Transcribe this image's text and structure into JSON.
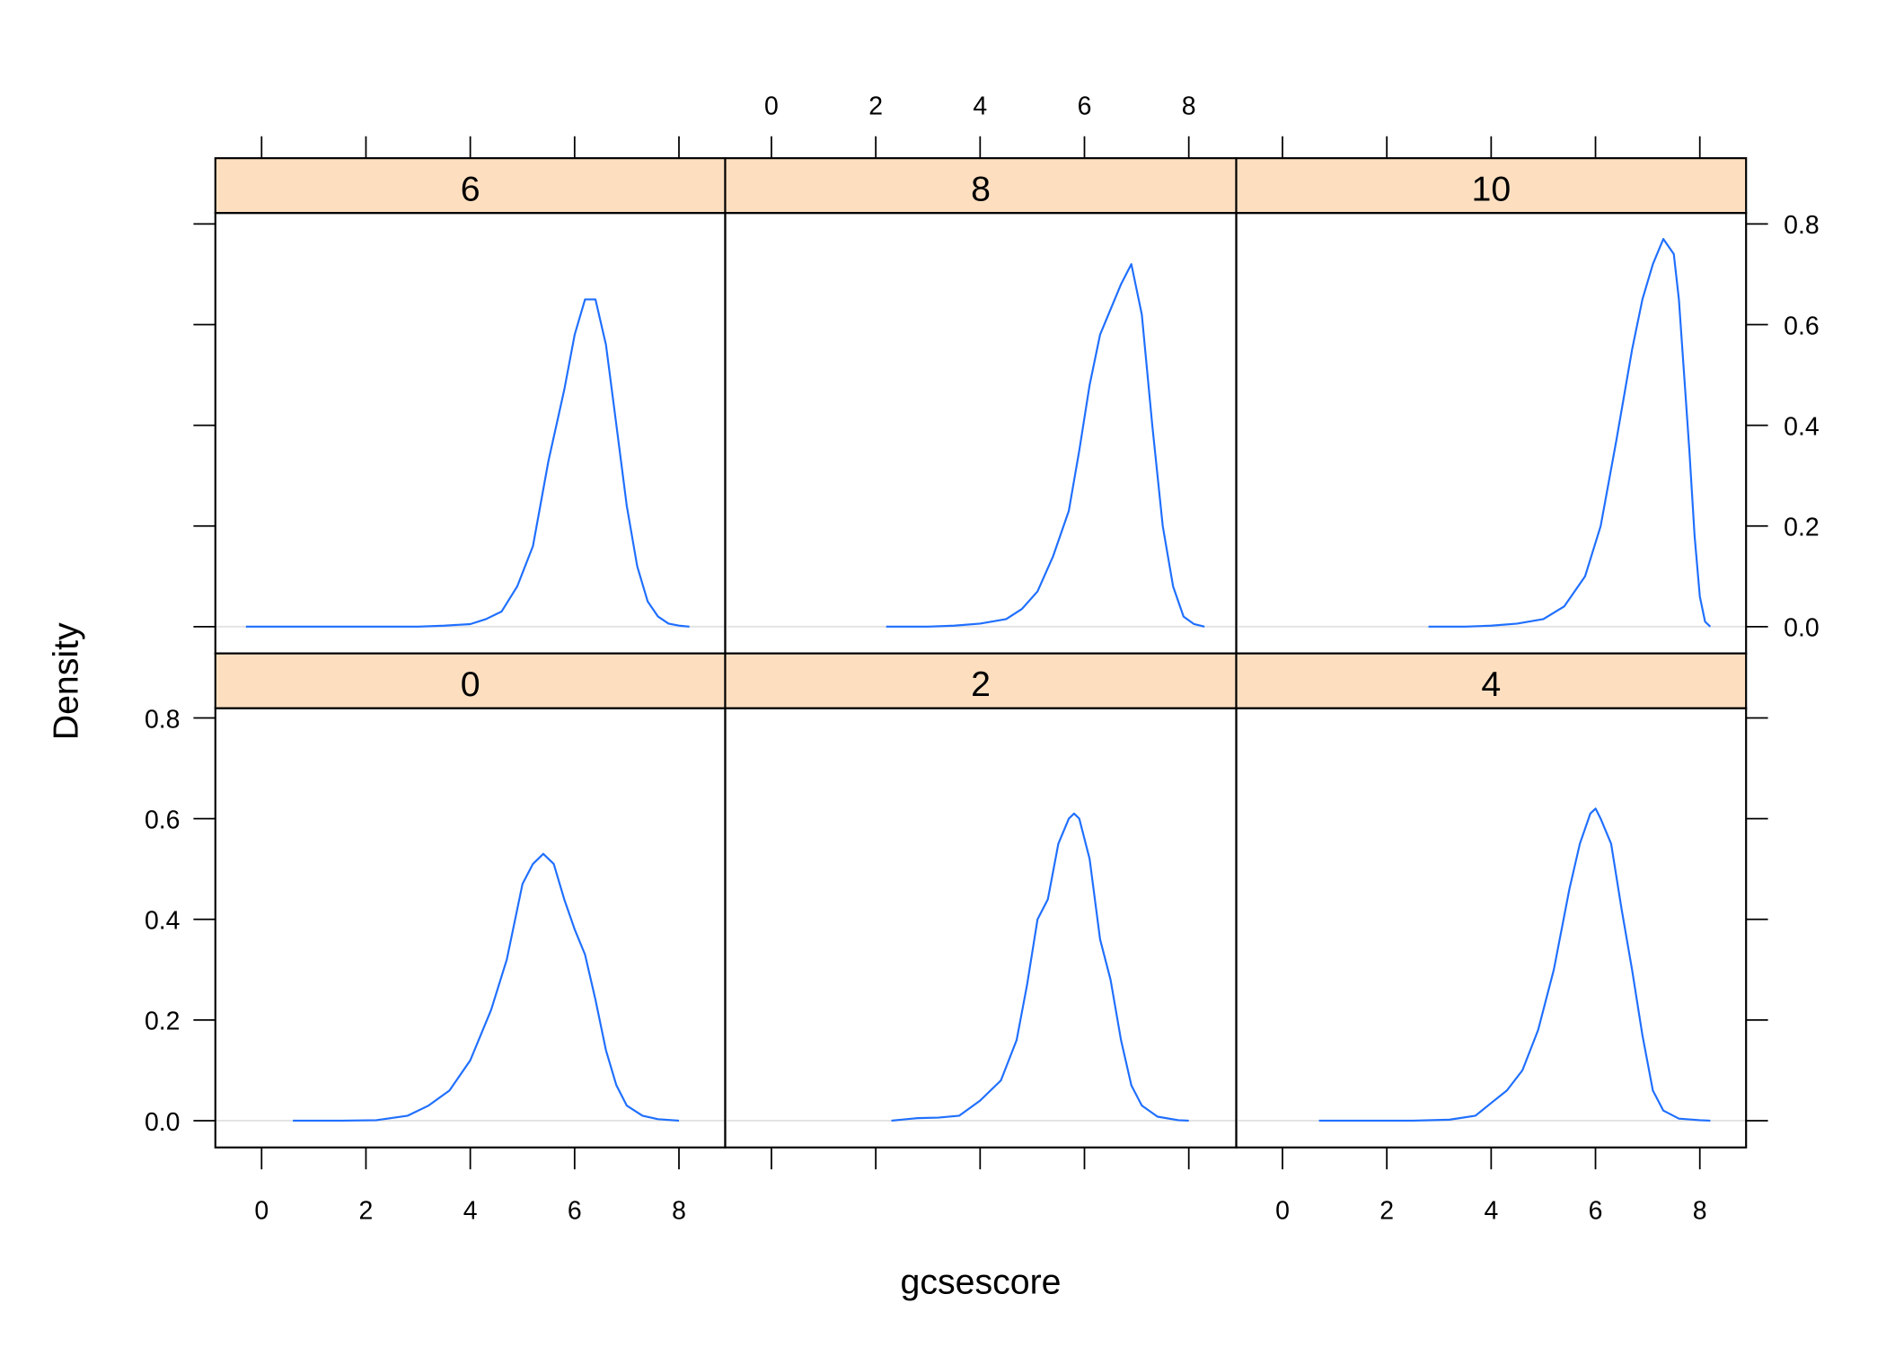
{
  "chart_data": {
    "type": "line",
    "subtype": "faceted density plot (lattice densityplot)",
    "xlabel": "gcsescore",
    "ylabel": "Density",
    "layout": {
      "columns": 3,
      "rows": 2,
      "strip_color": "#fddfc0",
      "line_color": "#1f6fff",
      "reference_line_color": "#e2e2e2"
    },
    "x_ticks": [
      0,
      2,
      4,
      6,
      8
    ],
    "y_ticks": [
      0.0,
      0.2,
      0.4,
      0.6,
      0.8
    ],
    "x_tick_labels": [
      "0",
      "2",
      "4",
      "6",
      "8"
    ],
    "y_tick_labels": [
      "0.0",
      "0.2",
      "0.4",
      "0.6",
      "0.8"
    ],
    "xlim": [
      -0.9,
      8.9
    ],
    "ylim": [
      -0.05,
      0.83
    ],
    "panels": [
      {
        "label": "6",
        "row": 0,
        "col": 0,
        "peak_x": 6.4,
        "peak_y": 0.65,
        "x": [
          -0.3,
          1,
          2,
          3,
          3.5,
          4,
          4.3,
          4.6,
          4.9,
          5.2,
          5.5,
          5.8,
          6.0,
          6.2,
          6.4,
          6.6,
          6.8,
          7.0,
          7.2,
          7.4,
          7.6,
          7.8,
          8.0,
          8.2
        ],
        "y": [
          0,
          0,
          0,
          0,
          0.002,
          0.005,
          0.015,
          0.03,
          0.08,
          0.16,
          0.33,
          0.47,
          0.58,
          0.65,
          0.65,
          0.56,
          0.4,
          0.24,
          0.12,
          0.05,
          0.02,
          0.006,
          0.002,
          0
        ]
      },
      {
        "label": "8",
        "row": 0,
        "col": 1,
        "peak_x": 6.9,
        "peak_y": 0.72,
        "x": [
          2.2,
          3,
          3.5,
          4,
          4.5,
          4.8,
          5.1,
          5.4,
          5.7,
          5.9,
          6.1,
          6.3,
          6.5,
          6.7,
          6.9,
          7.1,
          7.3,
          7.5,
          7.7,
          7.9,
          8.1,
          8.3
        ],
        "y": [
          0,
          0,
          0.002,
          0.006,
          0.015,
          0.035,
          0.07,
          0.14,
          0.23,
          0.35,
          0.48,
          0.58,
          0.63,
          0.68,
          0.72,
          0.62,
          0.4,
          0.2,
          0.08,
          0.02,
          0.005,
          0
        ]
      },
      {
        "label": "10",
        "row": 0,
        "col": 2,
        "peak_x": 7.3,
        "peak_y": 0.77,
        "x": [
          2.8,
          3.5,
          4,
          4.5,
          5,
          5.4,
          5.8,
          6.1,
          6.4,
          6.7,
          6.9,
          7.1,
          7.3,
          7.5,
          7.6,
          7.7,
          7.8,
          7.9,
          8.0,
          8.1,
          8.2
        ],
        "y": [
          0,
          0,
          0.002,
          0.006,
          0.015,
          0.04,
          0.1,
          0.2,
          0.37,
          0.55,
          0.65,
          0.72,
          0.77,
          0.74,
          0.65,
          0.5,
          0.35,
          0.18,
          0.06,
          0.01,
          0
        ]
      },
      {
        "label": "0",
        "row": 1,
        "col": 0,
        "peak_x": 5.4,
        "peak_y": 0.53,
        "x": [
          0.6,
          1.5,
          2.2,
          2.8,
          3.2,
          3.6,
          4.0,
          4.4,
          4.7,
          5.0,
          5.2,
          5.4,
          5.6,
          5.8,
          6.0,
          6.2,
          6.4,
          6.6,
          6.8,
          7.0,
          7.3,
          7.6,
          8.0
        ],
        "y": [
          0,
          0,
          0.001,
          0.01,
          0.03,
          0.06,
          0.12,
          0.22,
          0.32,
          0.47,
          0.51,
          0.53,
          0.51,
          0.44,
          0.38,
          0.33,
          0.24,
          0.14,
          0.07,
          0.03,
          0.01,
          0.003,
          0
        ]
      },
      {
        "label": "2",
        "row": 1,
        "col": 1,
        "peak_x": 5.8,
        "peak_y": 0.61,
        "x": [
          2.3,
          2.8,
          3.2,
          3.6,
          4.0,
          4.4,
          4.7,
          4.9,
          5.1,
          5.3,
          5.5,
          5.7,
          5.8,
          5.9,
          6.1,
          6.3,
          6.5,
          6.7,
          6.9,
          7.1,
          7.4,
          7.8,
          8.0
        ],
        "y": [
          0,
          0.005,
          0.006,
          0.01,
          0.04,
          0.08,
          0.16,
          0.27,
          0.4,
          0.44,
          0.55,
          0.6,
          0.61,
          0.6,
          0.52,
          0.36,
          0.28,
          0.16,
          0.07,
          0.03,
          0.008,
          0.001,
          0
        ]
      },
      {
        "label": "4",
        "row": 1,
        "col": 2,
        "peak_x": 6.0,
        "peak_y": 0.62,
        "x": [
          0.7,
          1.5,
          2.5,
          3.2,
          3.7,
          4.0,
          4.3,
          4.6,
          4.9,
          5.2,
          5.5,
          5.7,
          5.9,
          6.0,
          6.1,
          6.3,
          6.5,
          6.7,
          6.9,
          7.1,
          7.3,
          7.6,
          8.0,
          8.2
        ],
        "y": [
          0,
          0,
          0,
          0.002,
          0.01,
          0.035,
          0.06,
          0.1,
          0.18,
          0.3,
          0.46,
          0.55,
          0.61,
          0.62,
          0.6,
          0.55,
          0.42,
          0.3,
          0.17,
          0.06,
          0.02,
          0.004,
          0.001,
          0
        ]
      }
    ]
  }
}
